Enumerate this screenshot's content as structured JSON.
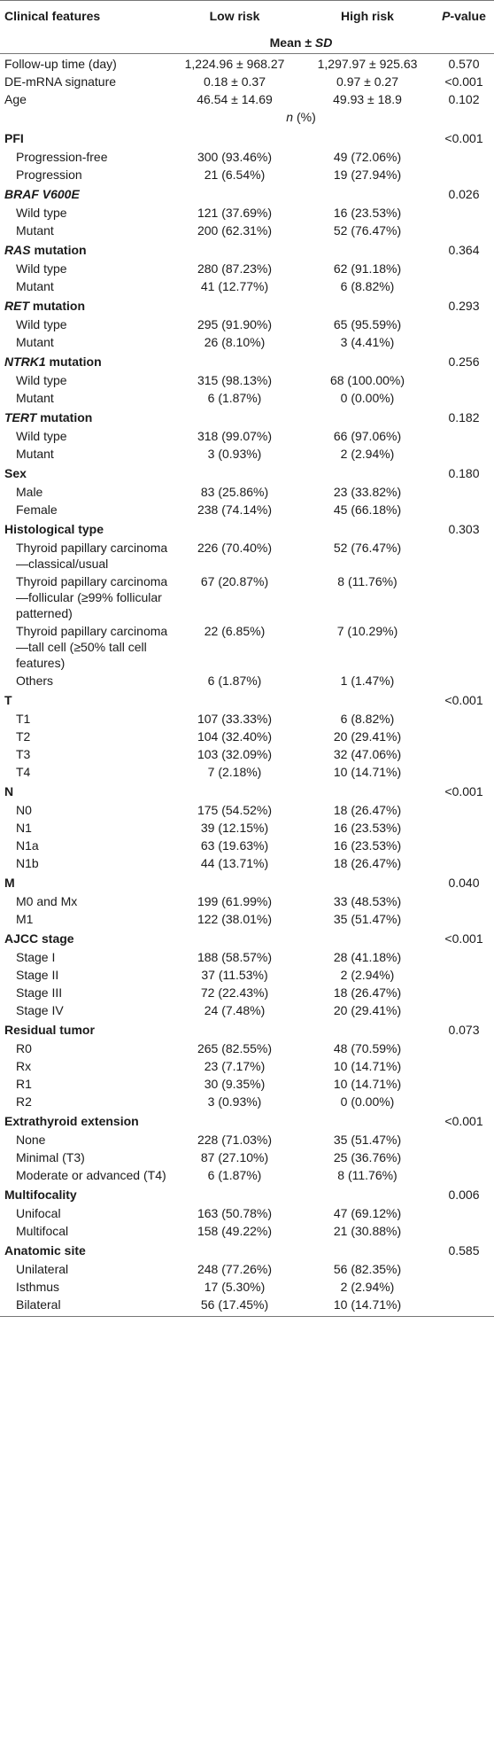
{
  "header": {
    "col1": "Clinical features",
    "col2": "Low risk",
    "col3": "High risk",
    "col4_italic": "P",
    "col4_rest": "-value",
    "mean_sd_prefix": "Mean ± ",
    "mean_sd_italic": "SD"
  },
  "summary_rows": [
    {
      "label": "Follow-up time (day)",
      "low": "1,224.96 ± 968.27",
      "high": "1,297.97 ± 925.63",
      "p": "0.570"
    },
    {
      "label": "DE-mRNA signature",
      "low": "0.18 ± 0.37",
      "high": "0.97 ± 0.27",
      "p": "<0.001"
    },
    {
      "label": "Age",
      "low": "46.54 ± 14.69",
      "high": "49.93 ± 18.9",
      "p": "0.102"
    }
  ],
  "n_percent": {
    "n": "n",
    "rest": " (%)"
  },
  "categories": [
    {
      "title": "PFI",
      "p": "<0.001",
      "rows": [
        {
          "label": "Progression-free",
          "low": "300 (93.46%)",
          "high": "49 (72.06%)"
        },
        {
          "label": "Progression",
          "low": "21 (6.54%)",
          "high": "19 (27.94%)"
        }
      ]
    },
    {
      "title": "BRAF V600E",
      "title_italic": "BRAF V600E",
      "title_rest": "",
      "p": "0.026",
      "rows": [
        {
          "label": "Wild type",
          "low": "121 (37.69%)",
          "high": "16 (23.53%)"
        },
        {
          "label": "Mutant",
          "low": "200 (62.31%)",
          "high": "52 (76.47%)"
        }
      ]
    },
    {
      "title": "RAS mutation",
      "title_italic": "RAS",
      "title_rest": " mutation",
      "p": "0.364",
      "rows": [
        {
          "label": "Wild type",
          "low": "280 (87.23%)",
          "high": "62 (91.18%)"
        },
        {
          "label": "Mutant",
          "low": "41 (12.77%)",
          "high": "6 (8.82%)"
        }
      ]
    },
    {
      "title": "RET mutation",
      "title_italic": "RET",
      "title_rest": " mutation",
      "p": "0.293",
      "rows": [
        {
          "label": "Wild type",
          "low": "295 (91.90%)",
          "high": "65 (95.59%)"
        },
        {
          "label": "Mutant",
          "low": "26 (8.10%)",
          "high": "3 (4.41%)"
        }
      ]
    },
    {
      "title": "NTRK1 mutation",
      "title_italic": "NTRK1",
      "title_rest": " mutation",
      "p": "0.256",
      "rows": [
        {
          "label": "Wild type",
          "low": "315 (98.13%)",
          "high": "68 (100.00%)"
        },
        {
          "label": "Mutant",
          "low": "6 (1.87%)",
          "high": "0 (0.00%)"
        }
      ]
    },
    {
      "title": "TERT mutation",
      "title_italic": "TERT",
      "title_rest": " mutation",
      "p": "0.182",
      "rows": [
        {
          "label": "Wild type",
          "low": "318 (99.07%)",
          "high": "66 (97.06%)"
        },
        {
          "label": "Mutant",
          "low": "3 (0.93%)",
          "high": "2 (2.94%)"
        }
      ]
    },
    {
      "title": "Sex",
      "p": "0.180",
      "rows": [
        {
          "label": "Male",
          "low": "83 (25.86%)",
          "high": "23 (33.82%)"
        },
        {
          "label": "Female",
          "low": "238 (74.14%)",
          "high": "45 (66.18%)"
        }
      ]
    },
    {
      "title": "Histological type",
      "p": "0.303",
      "rows": [
        {
          "label": "Thyroid papillary carcinoma—classical/usual",
          "low": "226 (70.40%)",
          "high": "52 (76.47%)"
        },
        {
          "label": "Thyroid papillary carcinoma—follicular (≥99% follicular patterned)",
          "low": "67 (20.87%)",
          "high": "8 (11.76%)"
        },
        {
          "label": "Thyroid papillary carcinoma—tall cell (≥50% tall cell features)",
          "low": "22 (6.85%)",
          "high": "7 (10.29%)"
        },
        {
          "label": "Others",
          "low": "6 (1.87%)",
          "high": "1 (1.47%)"
        }
      ]
    },
    {
      "title": "T",
      "p": "<0.001",
      "rows": [
        {
          "label": "T1",
          "low": "107 (33.33%)",
          "high": "6 (8.82%)"
        },
        {
          "label": "T2",
          "low": "104 (32.40%)",
          "high": "20 (29.41%)"
        },
        {
          "label": "T3",
          "low": "103 (32.09%)",
          "high": "32 (47.06%)"
        },
        {
          "label": "T4",
          "low": "7 (2.18%)",
          "high": "10 (14.71%)"
        }
      ]
    },
    {
      "title": "N",
      "p": "<0.001",
      "rows": [
        {
          "label": "N0",
          "low": "175 (54.52%)",
          "high": "18 (26.47%)"
        },
        {
          "label": "N1",
          "low": "39 (12.15%)",
          "high": "16 (23.53%)"
        },
        {
          "label": "N1a",
          "low": "63 (19.63%)",
          "high": "16 (23.53%)"
        },
        {
          "label": "N1b",
          "low": "44 (13.71%)",
          "high": "18 (26.47%)"
        }
      ]
    },
    {
      "title": "M",
      "p": "0.040",
      "rows": [
        {
          "label": "M0 and Mx",
          "low": "199 (61.99%)",
          "high": "33 (48.53%)"
        },
        {
          "label": "M1",
          "low": "122 (38.01%)",
          "high": "35 (51.47%)"
        }
      ]
    },
    {
      "title": "AJCC stage",
      "p": "<0.001",
      "rows": [
        {
          "label": "Stage I",
          "low": "188 (58.57%)",
          "high": "28 (41.18%)"
        },
        {
          "label": "Stage II",
          "low": "37 (11.53%)",
          "high": "2 (2.94%)"
        },
        {
          "label": "Stage III",
          "low": "72 (22.43%)",
          "high": "18 (26.47%)"
        },
        {
          "label": "Stage IV",
          "low": "24 (7.48%)",
          "high": "20 (29.41%)"
        }
      ]
    },
    {
      "title": "Residual tumor",
      "p": "0.073",
      "rows": [
        {
          "label": "R0",
          "low": "265 (82.55%)",
          "high": "48 (70.59%)"
        },
        {
          "label": "Rx",
          "low": "23 (7.17%)",
          "high": "10 (14.71%)"
        },
        {
          "label": "R1",
          "low": "30 (9.35%)",
          "high": "10 (14.71%)"
        },
        {
          "label": "R2",
          "low": "3 (0.93%)",
          "high": "0 (0.00%)"
        }
      ]
    },
    {
      "title": "Extrathyroid extension",
      "p": "<0.001",
      "rows": [
        {
          "label": "None",
          "low": "228 (71.03%)",
          "high": "35 (51.47%)"
        },
        {
          "label": "Minimal (T3)",
          "low": "87 (27.10%)",
          "high": "25 (36.76%)"
        },
        {
          "label": "Moderate or advanced (T4)",
          "low": "6 (1.87%)",
          "high": "8 (11.76%)"
        }
      ]
    },
    {
      "title": "Multifocality",
      "p": "0.006",
      "rows": [
        {
          "label": "Unifocal",
          "low": "163 (50.78%)",
          "high": "47 (69.12%)"
        },
        {
          "label": "Multifocal",
          "low": "158 (49.22%)",
          "high": "21 (30.88%)"
        }
      ]
    },
    {
      "title": "Anatomic site",
      "p": "0.585",
      "rows": [
        {
          "label": "Unilateral",
          "low": "248 (77.26%)",
          "high": "56 (82.35%)"
        },
        {
          "label": "Isthmus",
          "low": "17 (5.30%)",
          "high": "2 (2.94%)"
        },
        {
          "label": "Bilateral",
          "low": "56 (17.45%)",
          "high": "10 (14.71%)"
        }
      ]
    }
  ]
}
